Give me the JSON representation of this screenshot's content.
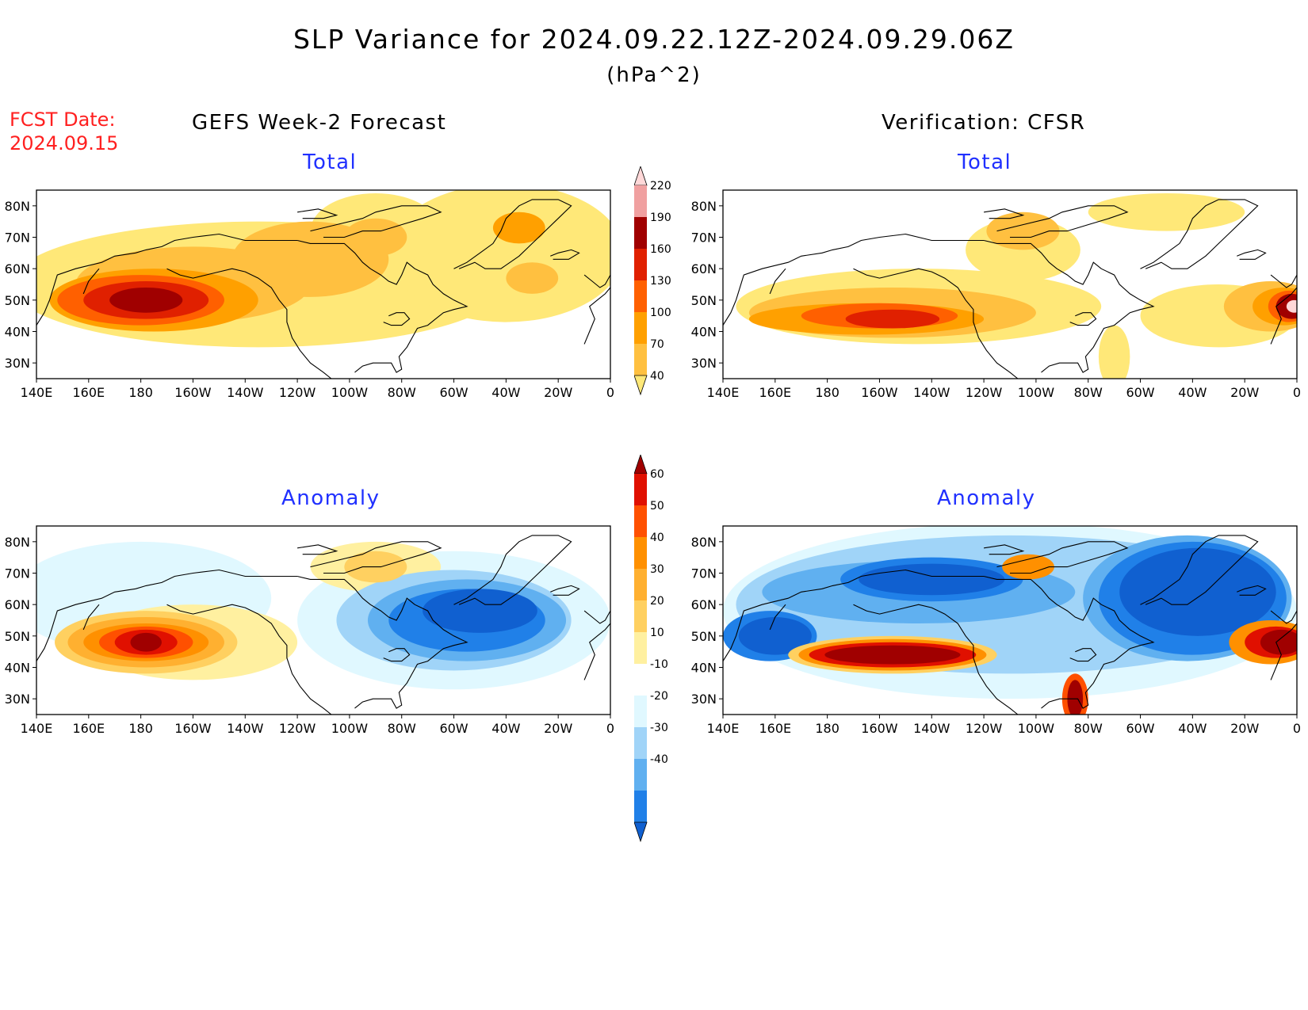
{
  "title": "SLP Variance for 2024.09.22.12Z-2024.09.29.06Z",
  "units": "(hPa^2)",
  "fcst_date": {
    "line1": "FCST Date:",
    "line2": "2024.09.15"
  },
  "columns": {
    "left": "GEFS Week-2 Forecast",
    "right": "Verification: CFSR"
  },
  "panels": {
    "gefs_total": "Total",
    "cfsr_total": "Total",
    "gefs_anomaly": "Anomaly",
    "cfsr_anomaly": "Anomaly"
  },
  "axes": {
    "lon_labels": [
      "140E",
      "160E",
      "180",
      "160W",
      "140W",
      "120W",
      "100W",
      "80W",
      "60W",
      "40W",
      "20W",
      "0"
    ],
    "lat_labels": [
      "30N",
      "40N",
      "50N",
      "60N",
      "70N",
      "80N"
    ],
    "lon_range": [
      140,
      360
    ],
    "lat_range": [
      25,
      85
    ]
  },
  "colorbars": {
    "total": {
      "levels": [
        "40",
        "70",
        "100",
        "130",
        "160",
        "190",
        "220"
      ],
      "colors": [
        "#ffe878",
        "#ffc040",
        "#ffa000",
        "#ff6000",
        "#e02000",
        "#a00000",
        "#f0a0a0",
        "#ffd8d8"
      ]
    },
    "anomaly": {
      "levels": [
        "-40",
        "-30",
        "-20",
        "-10",
        "10",
        "20",
        "30",
        "40",
        "50",
        "60"
      ],
      "colors": [
        "#1060d0",
        "#2080e8",
        "#60b0f0",
        "#a0d4f8",
        "#e0f8ff",
        "#ffffff",
        "#fff0a0",
        "#ffd060",
        "#ffb030",
        "#ff9000",
        "#ff5000",
        "#e01000",
        "#a00000"
      ]
    }
  },
  "palette": {
    "total": {
      "t1": "#ffe878",
      "t2": "#ffc040",
      "t3": "#ffa000",
      "t4": "#ff6000",
      "t5": "#e02000",
      "t6": "#a00000",
      "t7": "#f0a0a0",
      "t8": "#ffd8d8"
    },
    "anom": {
      "b4": "#1060d0",
      "b3": "#2080e8",
      "b2": "#60b0f0",
      "b1": "#a0d4f8",
      "b0": "#e0f8ff",
      "r1": "#fff0a0",
      "r2": "#ffd060",
      "r3": "#ffb030",
      "r4": "#ff9000",
      "r5": "#ff5000",
      "r6": "#e01000",
      "r7": "#a00000"
    }
  }
}
